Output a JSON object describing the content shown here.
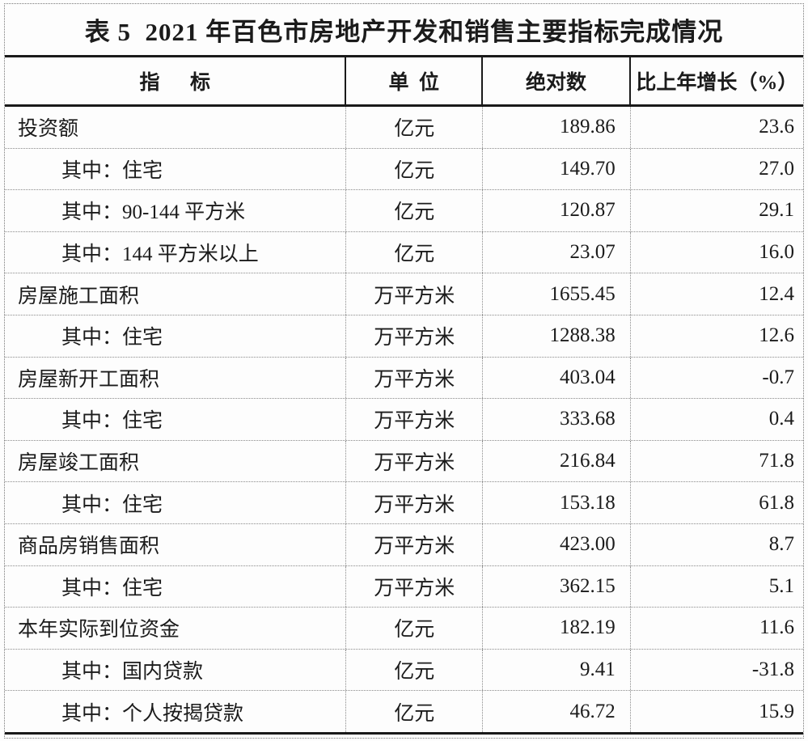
{
  "page": {
    "title": "表 5  2021 年百色市房地产开发和销售主要指标完成情况"
  },
  "table": {
    "columns": {
      "indicator": "指      标",
      "unit": "单  位",
      "absolute": "绝对数",
      "growth": "比上年增长（%）"
    },
    "rows": [
      {
        "indicator": "投资额",
        "indent": false,
        "unit": "亿元",
        "absolute": "189.86",
        "growth": "23.6"
      },
      {
        "indicator": "其中：住宅",
        "indent": true,
        "unit": "亿元",
        "absolute": "149.70",
        "growth": "27.0"
      },
      {
        "indicator": "其中：90-144 平方米",
        "indent": true,
        "unit": "亿元",
        "absolute": "120.87",
        "growth": "29.1"
      },
      {
        "indicator": "其中：144 平方米以上",
        "indent": true,
        "unit": "亿元",
        "absolute": "23.07",
        "growth": "16.0"
      },
      {
        "indicator": "房屋施工面积",
        "indent": false,
        "unit": "万平方米",
        "absolute": "1655.45",
        "growth": "12.4"
      },
      {
        "indicator": "其中：住宅",
        "indent": true,
        "unit": "万平方米",
        "absolute": "1288.38",
        "growth": "12.6"
      },
      {
        "indicator": "房屋新开工面积",
        "indent": false,
        "unit": "万平方米",
        "absolute": "403.04",
        "growth": "-0.7"
      },
      {
        "indicator": "其中：住宅",
        "indent": true,
        "unit": "万平方米",
        "absolute": "333.68",
        "growth": "0.4"
      },
      {
        "indicator": "房屋竣工面积",
        "indent": false,
        "unit": "万平方米",
        "absolute": "216.84",
        "growth": "71.8"
      },
      {
        "indicator": "其中：住宅",
        "indent": true,
        "unit": "万平方米",
        "absolute": "153.18",
        "growth": "61.8"
      },
      {
        "indicator": "商品房销售面积",
        "indent": false,
        "unit": "万平方米",
        "absolute": "423.00",
        "growth": "8.7"
      },
      {
        "indicator": "其中：住宅",
        "indent": true,
        "unit": "万平方米",
        "absolute": "362.15",
        "growth": "5.1"
      },
      {
        "indicator": "本年实际到位资金",
        "indent": false,
        "unit": "亿元",
        "absolute": "182.19",
        "growth": "11.6"
      },
      {
        "indicator": "其中：国内贷款",
        "indent": true,
        "unit": "亿元",
        "absolute": "9.41",
        "growth": "-31.8"
      },
      {
        "indicator": "其中：个人按揭贷款",
        "indent": true,
        "unit": "亿元",
        "absolute": "46.72",
        "growth": "15.9"
      }
    ]
  },
  "colors": {
    "solid_line": "#1a1a1a",
    "dotted_line": "#8a8a8a",
    "text": "#1b1b1b",
    "background": "#fdfdfd"
  }
}
